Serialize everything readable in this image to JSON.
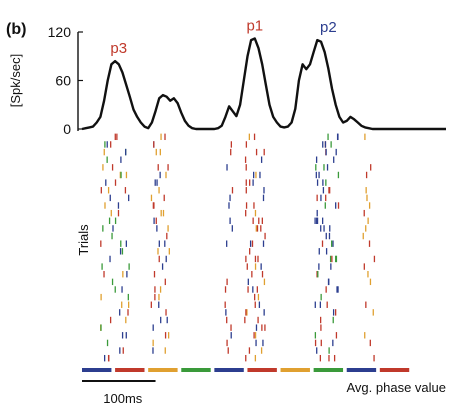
{
  "panel_label": "(b)",
  "chart_data": [
    {
      "type": "line",
      "title": "",
      "ylabel": "[Spk/sec]",
      "xlabel": "",
      "ylim": [
        0,
        120
      ],
      "yticks": [
        0,
        60,
        120
      ],
      "grid": false,
      "x_unit": "ms",
      "x": [
        -145,
        -140,
        -135,
        -130,
        -125,
        -120,
        -115,
        -110,
        -105,
        -100,
        -95,
        -90,
        -85,
        -80,
        -75,
        -70,
        -65,
        -60,
        -55,
        -50,
        -45,
        -40,
        -35,
        -30,
        -25,
        -20,
        -15,
        -10,
        -5,
        0,
        5,
        10,
        15,
        20,
        25,
        30,
        35,
        40,
        45,
        50,
        55,
        60,
        65,
        70,
        75,
        80,
        85,
        90,
        95,
        100,
        105,
        110,
        115,
        120,
        125,
        130,
        135,
        140,
        145,
        150,
        155,
        160,
        165,
        170,
        175,
        180,
        185,
        190,
        195,
        200,
        205,
        210,
        215,
        220,
        225,
        230,
        235,
        240,
        245,
        250,
        255,
        260,
        265,
        270,
        275,
        280,
        285,
        290,
        295,
        300,
        305,
        310,
        315,
        320,
        325,
        330,
        335,
        340,
        345,
        350
      ],
      "series": [
        {
          "values": [
            0,
            1,
            2,
            3,
            8,
            15,
            35,
            60,
            80,
            84,
            80,
            70,
            55,
            40,
            24,
            15,
            8,
            3,
            1,
            8,
            22,
            38,
            42,
            40,
            35,
            38,
            32,
            20,
            10,
            4,
            1,
            0,
            0,
            0,
            0,
            0,
            0,
            1,
            4,
            15,
            28,
            22,
            16,
            30,
            60,
            90,
            110,
            112,
            100,
            80,
            55,
            30,
            15,
            8,
            3,
            2,
            3,
            8,
            25,
            60,
            80,
            74,
            80,
            95,
            110,
            108,
            95,
            75,
            50,
            30,
            15,
            8,
            10,
            15,
            12,
            8,
            4,
            2,
            1,
            0,
            0,
            0,
            0,
            0,
            0,
            0,
            0,
            0,
            0,
            0,
            0,
            0,
            0,
            0,
            0,
            0,
            0,
            0,
            0,
            0
          ]
        }
      ],
      "annotations": [
        {
          "text": "p3",
          "x": -95,
          "color": "#c0392b"
        },
        {
          "text": "p1",
          "x": 90,
          "color": "#c0392b"
        },
        {
          "text": "p2",
          "x": 190,
          "color": "#2c3e8f"
        }
      ]
    },
    {
      "type": "scatter",
      "subtype": "raster",
      "title": "",
      "ylabel": "Trials",
      "xlabel": "Avg. phase value",
      "n_trials": 30,
      "x_unit": "ms",
      "scale_bar": {
        "label": "100ms",
        "length": 100
      },
      "colors": {
        "red": "#c0392b",
        "orange": "#e0a030",
        "blue": "#2c3e8f",
        "green": "#3a9a3a"
      },
      "phase_segments": [
        {
          "start": -145,
          "end": -105,
          "color": "#2c3e8f"
        },
        {
          "start": -100,
          "end": -60,
          "color": "#c0392b"
        },
        {
          "start": -55,
          "end": -15,
          "color": "#e0a030"
        },
        {
          "start": -10,
          "end": 30,
          "color": "#3a9a3a"
        },
        {
          "start": 35,
          "end": 75,
          "color": "#2c3e8f"
        },
        {
          "start": 80,
          "end": 120,
          "color": "#c0392b"
        },
        {
          "start": 125,
          "end": 165,
          "color": "#e0a030"
        },
        {
          "start": 170,
          "end": 210,
          "color": "#3a9a3a"
        },
        {
          "start": 215,
          "end": 255,
          "color": "#2c3e8f"
        },
        {
          "start": 260,
          "end": 300,
          "color": "#c0392b"
        }
      ],
      "spike_clusters": [
        {
          "center": -100,
          "spread": 20,
          "colors": [
            "red",
            "orange",
            "blue",
            "green"
          ],
          "density": 3
        },
        {
          "center": -40,
          "spread": 14,
          "colors": [
            "orange",
            "orange",
            "red",
            "blue"
          ],
          "density": 2
        },
        {
          "center": 55,
          "spread": 6,
          "colors": [
            "blue",
            "red"
          ],
          "density": 1
        },
        {
          "center": 90,
          "spread": 14,
          "colors": [
            "red",
            "red",
            "orange",
            "blue"
          ],
          "density": 3
        },
        {
          "center": 188,
          "spread": 16,
          "colors": [
            "blue",
            "blue",
            "green",
            "red"
          ],
          "density": 4
        },
        {
          "center": 245,
          "spread": 8,
          "colors": [
            "red",
            "orange"
          ],
          "density": 1
        }
      ]
    }
  ]
}
